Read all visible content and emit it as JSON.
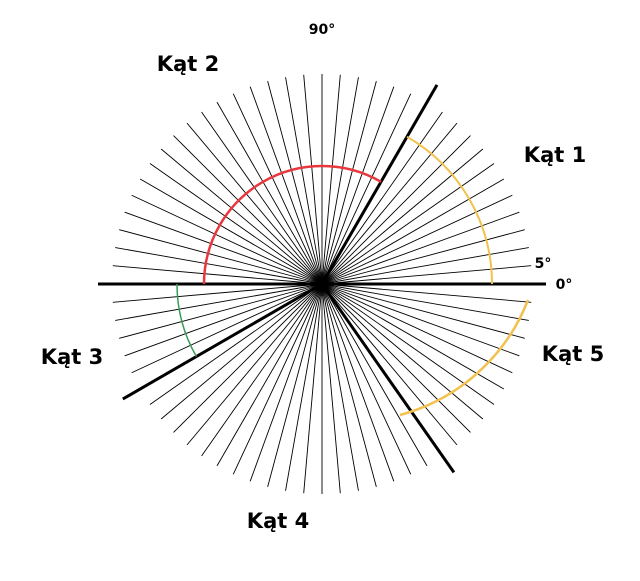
{
  "degree_marks": [
    "90°",
    "5°",
    "0°"
  ],
  "angle_names": [
    "Kąt 1",
    "Kąt 2",
    "Kąt 3",
    "Kąt 4",
    "Kąt 5"
  ]
}
